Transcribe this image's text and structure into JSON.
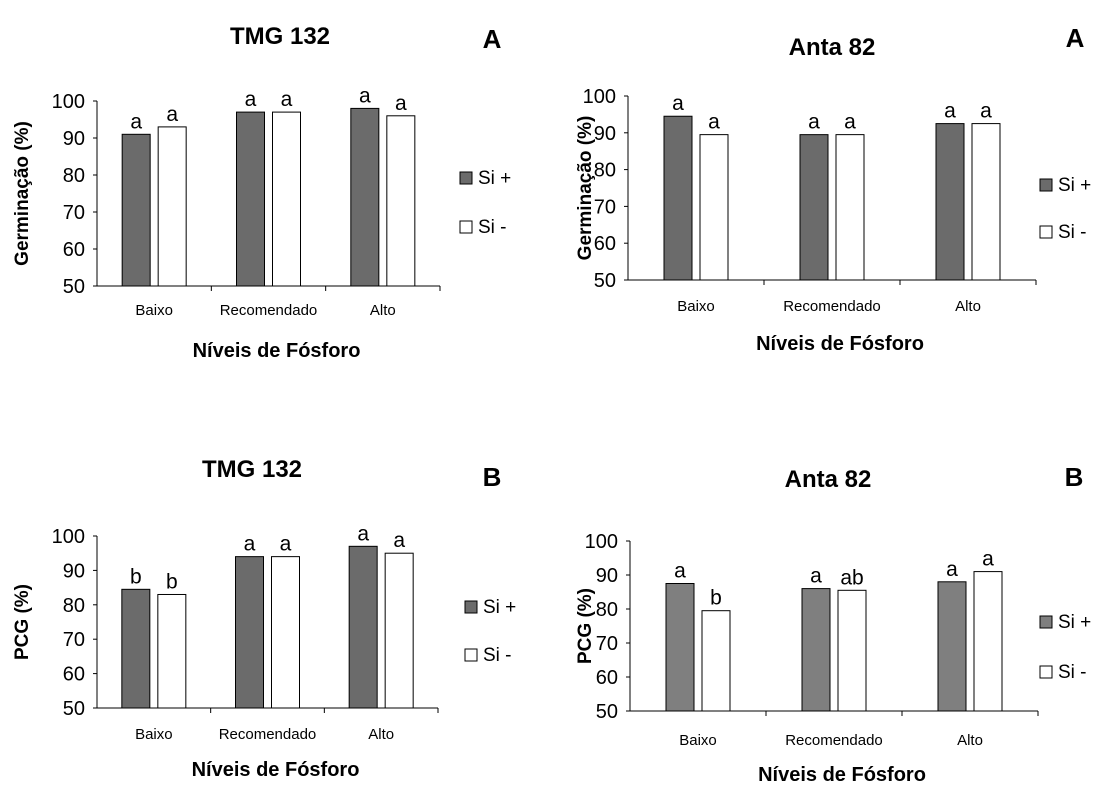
{
  "chart_data": [
    {
      "type": "bar",
      "title": "TMG 132",
      "panel_letter": "A",
      "xlabel": "Níveis de Fósforo",
      "ylabel": "Germinação (%)",
      "categories": [
        "Baixo",
        "Recomendado",
        "Alto"
      ],
      "ylim": [
        50,
        100
      ],
      "yticks": [
        50,
        60,
        70,
        80,
        90,
        100
      ],
      "legend_position": "right",
      "grid": false,
      "series": [
        {
          "name": "Si +",
          "color": "#6b6b6b",
          "values": [
            91,
            97,
            98
          ],
          "labels": [
            "a",
            "a",
            "a"
          ]
        },
        {
          "name": "Si -",
          "color": "#ffffff",
          "values": [
            93,
            97,
            96
          ],
          "labels": [
            "a",
            "a",
            "a"
          ]
        }
      ]
    },
    {
      "type": "bar",
      "title": "Anta 82",
      "panel_letter": "A",
      "xlabel": "Níveis de Fósforo",
      "ylabel": "Germinação (%)",
      "categories": [
        "Baixo",
        "Recomendado",
        "Alto"
      ],
      "ylim": [
        50,
        100
      ],
      "yticks": [
        50,
        60,
        70,
        80,
        90,
        100
      ],
      "legend_position": "right",
      "grid": false,
      "series": [
        {
          "name": "Si +",
          "color": "#6b6b6b",
          "values": [
            94.5,
            89.5,
            92.5
          ],
          "labels": [
            "a",
            "a",
            "a"
          ]
        },
        {
          "name": "Si -",
          "color": "#ffffff",
          "values": [
            89.5,
            89.5,
            92.5
          ],
          "labels": [
            "a",
            "a",
            "a"
          ]
        }
      ]
    },
    {
      "type": "bar",
      "title": "TMG 132",
      "panel_letter": "B",
      "xlabel": "Níveis de Fósforo",
      "ylabel": "PCG (%)",
      "categories": [
        "Baixo",
        "Recomendado",
        "Alto"
      ],
      "ylim": [
        50,
        100
      ],
      "yticks": [
        50,
        60,
        70,
        80,
        90,
        100
      ],
      "legend_position": "right",
      "grid": false,
      "series": [
        {
          "name": "Si +",
          "color": "#6b6b6b",
          "values": [
            84.5,
            94,
            97
          ],
          "labels": [
            "b",
            "a",
            "a"
          ]
        },
        {
          "name": "Si -",
          "color": "#ffffff",
          "values": [
            83,
            94,
            95
          ],
          "labels": [
            "b",
            "a",
            "a"
          ]
        }
      ]
    },
    {
      "type": "bar",
      "title": "Anta 82",
      "panel_letter": "B",
      "xlabel": "Níveis de Fósforo",
      "ylabel": "PCG (%)",
      "categories": [
        "Baixo",
        "Recomendado",
        "Alto"
      ],
      "ylim": [
        50,
        100
      ],
      "yticks": [
        50,
        60,
        70,
        80,
        90,
        100
      ],
      "legend_position": "right",
      "grid": false,
      "series": [
        {
          "name": "Si +",
          "color": "#7f7f7f",
          "values": [
            87.5,
            86,
            88
          ],
          "labels": [
            "a",
            "a",
            "a"
          ]
        },
        {
          "name": "Si -",
          "color": "#ffffff",
          "values": [
            79.5,
            85.5,
            91
          ],
          "labels": [
            "b",
            "ab",
            "a"
          ]
        }
      ]
    }
  ]
}
